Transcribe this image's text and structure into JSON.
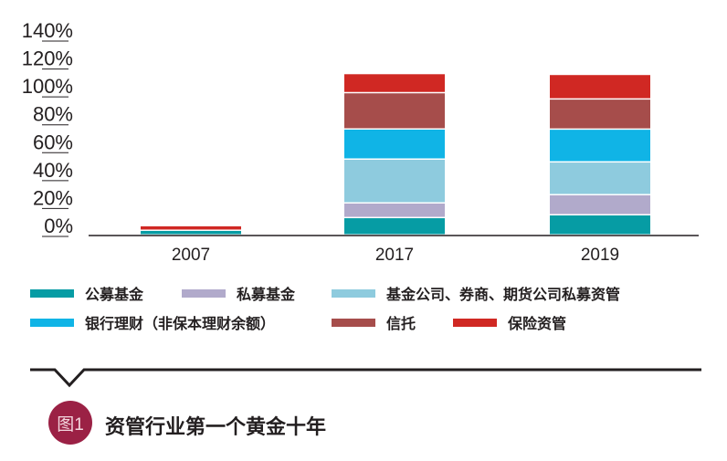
{
  "chart_data": {
    "type": "bar",
    "stacked": true,
    "title": "",
    "xlabel": "",
    "ylabel": "",
    "categories": [
      "2007",
      "2017",
      "2019"
    ],
    "yticks": [
      "0%",
      "20%",
      "40%",
      "60%",
      "80%",
      "100%",
      "120%",
      "140%"
    ],
    "ylim": [
      0,
      140
    ],
    "legend_position": "bottom",
    "series": [
      {
        "name": "公募基金",
        "color": "#069ca4",
        "values": [
          3.3,
          12.4,
          14.4
        ]
      },
      {
        "name": "私募基金",
        "color": "#b1aacb",
        "values": [
          0,
          10.5,
          14.4
        ]
      },
      {
        "name": "基金公司、券商、期货公司私募资管",
        "color": "#8ecbde",
        "values": [
          0,
          31.4,
          23.5
        ]
      },
      {
        "name": "银行理财（非保本理财余额）",
        "color": "#10b4e6",
        "values": [
          0,
          21.6,
          23.5
        ]
      },
      {
        "name": "信托",
        "color": "#a64d4b",
        "values": [
          0,
          26.0,
          21.6
        ]
      },
      {
        "name": "保险资管",
        "color": "#d02823",
        "values": [
          3.3,
          13.7,
          17.6
        ]
      }
    ]
  },
  "figure": {
    "badge": "图1",
    "title": "资管行业第一个黄金十年",
    "badge_color": "#9b2145"
  }
}
